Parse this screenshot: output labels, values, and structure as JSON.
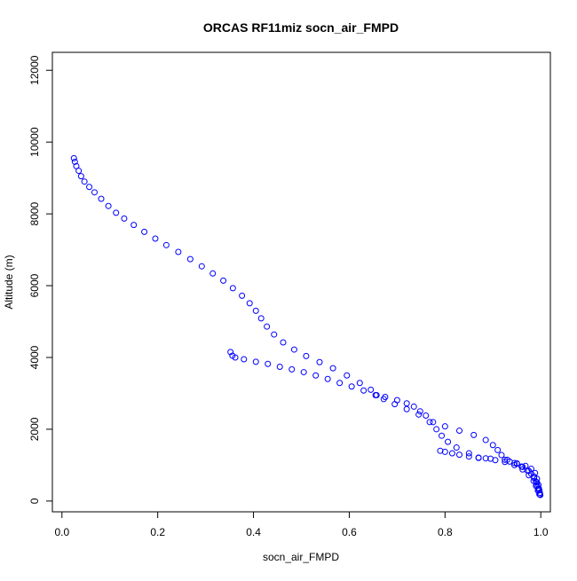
{
  "chart_data": {
    "type": "scatter",
    "title": "ORCAS RF11miz socn_air_FMPD",
    "xlabel": "socn_air_FMPD",
    "ylabel": "Altitude (m)",
    "xlim": [
      -0.02,
      1.02
    ],
    "ylim": [
      -300,
      12500
    ],
    "x_ticks": [
      {
        "value": 0.0,
        "label": "0.0"
      },
      {
        "value": 0.2,
        "label": "0.2"
      },
      {
        "value": 0.4,
        "label": "0.4"
      },
      {
        "value": 0.6,
        "label": "0.6"
      },
      {
        "value": 0.8,
        "label": "0.8"
      },
      {
        "value": 1.0,
        "label": "1.0"
      }
    ],
    "y_ticks": [
      {
        "value": 0,
        "label": "0"
      },
      {
        "value": 2000,
        "label": "2000"
      },
      {
        "value": 4000,
        "label": "4000"
      },
      {
        "value": 6000,
        "label": "6000"
      },
      {
        "value": 8000,
        "label": "8000"
      },
      {
        "value": 10000,
        "label": "10000"
      },
      {
        "value": 12000,
        "label": "12000"
      }
    ],
    "marker": "open-circle",
    "color": "#0000ff",
    "grid": false,
    "legend": "none",
    "series": [
      {
        "points": [
          [
            0.025,
            9550
          ],
          [
            0.027,
            9450
          ],
          [
            0.03,
            9330
          ],
          [
            0.035,
            9200
          ],
          [
            0.04,
            9050
          ],
          [
            0.047,
            8900
          ],
          [
            0.057,
            8750
          ],
          [
            0.068,
            8600
          ],
          [
            0.082,
            8420
          ],
          [
            0.097,
            8220
          ],
          [
            0.113,
            8030
          ],
          [
            0.13,
            7870
          ],
          [
            0.15,
            7690
          ],
          [
            0.172,
            7500
          ],
          [
            0.195,
            7310
          ],
          [
            0.218,
            7130
          ],
          [
            0.243,
            6940
          ],
          [
            0.268,
            6740
          ],
          [
            0.292,
            6540
          ],
          [
            0.315,
            6340
          ],
          [
            0.337,
            6140
          ],
          [
            0.357,
            5930
          ],
          [
            0.376,
            5720
          ],
          [
            0.392,
            5510
          ],
          [
            0.405,
            5300
          ],
          [
            0.416,
            5090
          ],
          [
            0.428,
            4860
          ],
          [
            0.443,
            4640
          ],
          [
            0.462,
            4420
          ],
          [
            0.485,
            4220
          ],
          [
            0.51,
            4040
          ],
          [
            0.538,
            3870
          ],
          [
            0.566,
            3700
          ],
          [
            0.595,
            3500
          ],
          [
            0.622,
            3290
          ],
          [
            0.645,
            3100
          ],
          [
            0.657,
            2950
          ],
          [
            0.672,
            2840
          ],
          [
            0.695,
            2700
          ],
          [
            0.72,
            2560
          ],
          [
            0.745,
            2410
          ],
          [
            0.768,
            2200
          ],
          [
            0.782,
            2000
          ],
          [
            0.793,
            1820
          ],
          [
            0.806,
            1650
          ],
          [
            0.824,
            1490
          ],
          [
            0.85,
            1330
          ],
          [
            0.87,
            1200
          ],
          [
            0.895,
            1180
          ],
          [
            0.925,
            1150
          ],
          [
            0.945,
            1060
          ],
          [
            0.96,
            960
          ],
          [
            0.975,
            840
          ],
          [
            0.986,
            680
          ],
          [
            0.992,
            520
          ],
          [
            0.996,
            350
          ],
          [
            0.998,
            180
          ]
        ]
      },
      {
        "points": [
          [
            0.352,
            4150
          ],
          [
            0.356,
            4050
          ],
          [
            0.362,
            4000
          ],
          [
            0.38,
            3950
          ],
          [
            0.405,
            3880
          ],
          [
            0.43,
            3820
          ],
          [
            0.455,
            3740
          ],
          [
            0.48,
            3670
          ],
          [
            0.505,
            3590
          ],
          [
            0.53,
            3500
          ],
          [
            0.555,
            3400
          ],
          [
            0.58,
            3290
          ],
          [
            0.605,
            3190
          ],
          [
            0.63,
            3080
          ],
          [
            0.655,
            2950
          ],
          [
            0.675,
            2900
          ],
          [
            0.7,
            2810
          ],
          [
            0.72,
            2720
          ],
          [
            0.735,
            2630
          ],
          [
            0.748,
            2500
          ],
          [
            0.76,
            2380
          ],
          [
            0.775,
            2200
          ],
          [
            0.8,
            2080
          ],
          [
            0.83,
            1960
          ],
          [
            0.86,
            1840
          ],
          [
            0.885,
            1700
          ],
          [
            0.9,
            1560
          ],
          [
            0.91,
            1420
          ],
          [
            0.918,
            1280
          ],
          [
            0.93,
            1150
          ],
          [
            0.95,
            1050
          ],
          [
            0.968,
            980
          ],
          [
            0.98,
            900
          ],
          [
            0.988,
            780
          ],
          [
            0.992,
            620
          ],
          [
            0.995,
            450
          ],
          [
            0.997,
            300
          ],
          [
            0.999,
            170
          ]
        ]
      },
      {
        "points": [
          [
            0.79,
            1400
          ],
          [
            0.8,
            1370
          ],
          [
            0.815,
            1330
          ],
          [
            0.83,
            1290
          ],
          [
            0.85,
            1240
          ],
          [
            0.87,
            1210
          ],
          [
            0.885,
            1190
          ],
          [
            0.905,
            1140
          ],
          [
            0.925,
            1090
          ],
          [
            0.945,
            1000
          ],
          [
            0.962,
            880
          ],
          [
            0.975,
            720
          ],
          [
            0.985,
            560
          ],
          [
            0.99,
            420
          ],
          [
            0.994,
            290
          ],
          [
            0.997,
            190
          ]
        ]
      },
      {
        "points": [
          [
            0.935,
            1100
          ],
          [
            0.95,
            1040
          ],
          [
            0.962,
            950
          ],
          [
            0.972,
            850
          ],
          [
            0.98,
            760
          ],
          [
            0.986,
            640
          ],
          [
            0.99,
            540
          ],
          [
            0.992,
            440
          ],
          [
            0.995,
            330
          ],
          [
            0.998,
            230
          ]
        ]
      }
    ]
  }
}
